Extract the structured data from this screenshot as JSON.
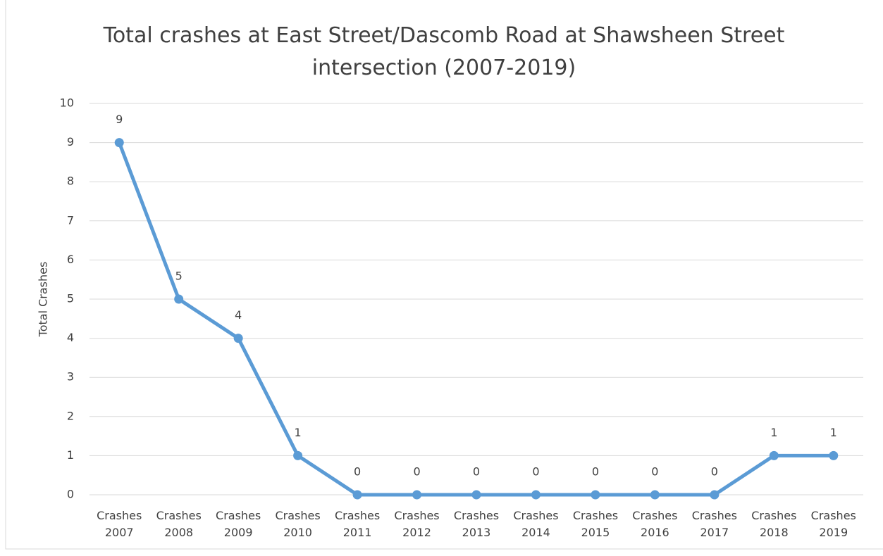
{
  "chart_data": {
    "type": "line",
    "title": "Total crashes at East Street/Dascomb Road at Shawsheen Street intersection (2007-2019)",
    "y_label": "Total Crashes",
    "categories": [
      "Crashes 2007",
      "Crashes 2008",
      "Crashes 2009",
      "Crashes 2010",
      "Crashes 2011",
      "Crashes 2012",
      "Crashes 2013",
      "Crashes 2014",
      "Crashes 2015",
      "Crashes 2016",
      "Crashes 2017",
      "Crashes 2018",
      "Crashes 2019"
    ],
    "values": [
      9,
      5,
      4,
      1,
      0,
      0,
      0,
      0,
      0,
      0,
      0,
      1,
      1
    ],
    "color": "#5b9bd5",
    "ylim": [
      0,
      10
    ],
    "yticks": [
      0,
      1,
      2,
      3,
      4,
      5,
      6,
      7,
      8,
      9,
      10
    ],
    "grid": true
  }
}
